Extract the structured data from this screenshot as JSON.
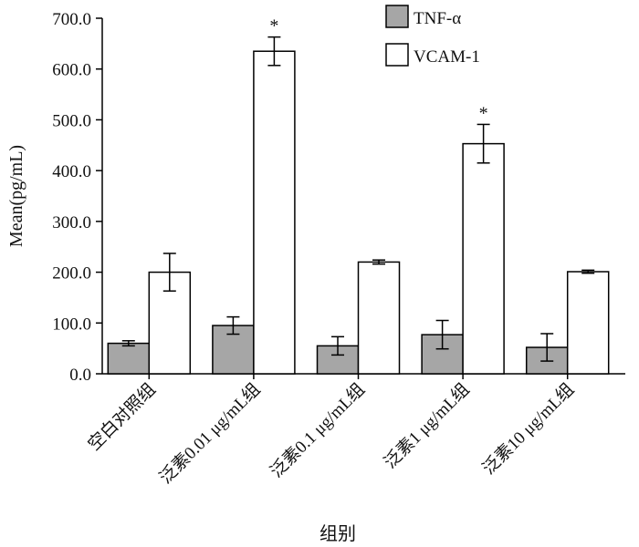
{
  "chart_data": {
    "type": "bar",
    "title": "",
    "xlabel": "组别",
    "ylabel": "Mean(pg/mL)",
    "ylim": [
      0,
      700
    ],
    "yticks": [
      "0.0",
      "100.0",
      "200.0",
      "300.0",
      "400.0",
      "500.0",
      "600.0",
      "700.0"
    ],
    "categories": [
      "空白对照组",
      "泛素0.01 μg/mL组",
      "泛素0.1 μg/mL组",
      "泛素1 μg/mL组",
      "泛素10 μg/mL组"
    ],
    "series": [
      {
        "name": "TNF-α",
        "color": "#a6a6a6",
        "values": [
          60,
          95,
          55,
          77,
          52
        ],
        "errors": [
          5,
          17,
          18,
          28,
          27
        ],
        "significance": [
          "",
          "",
          "",
          "",
          ""
        ]
      },
      {
        "name": "VCAM-1",
        "color": "#ffffff",
        "values": [
          200,
          635,
          220,
          453,
          201
        ],
        "errors": [
          37,
          28,
          4,
          38,
          3
        ],
        "significance": [
          "",
          "*",
          "",
          "*",
          ""
        ]
      }
    ],
    "legend": "top-right",
    "grid": false
  }
}
